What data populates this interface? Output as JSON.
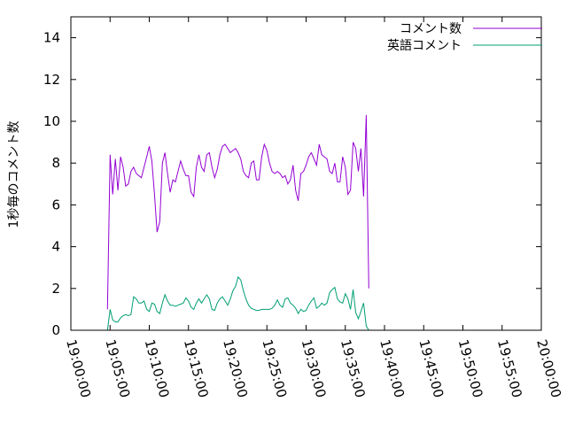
{
  "chart_data": {
    "type": "line",
    "title": "",
    "xlabel": "",
    "ylabel": "1秒毎のコメント数",
    "xlim": [
      "19:00:00",
      "20:00:00"
    ],
    "ylim": [
      0,
      15
    ],
    "grid": false,
    "legend": "top-right",
    "x_ticks": [
      "19:00:00",
      "19:05:00",
      "19:10:00",
      "19:15:00",
      "19:20:00",
      "19:25:00",
      "19:30:00",
      "19:35:00",
      "19:40:00",
      "19:45:00",
      "19:50:00",
      "19:55:00",
      "20:00:00"
    ],
    "y_ticks": [
      "0",
      "2",
      "4",
      "6",
      "8",
      "10",
      "12",
      "14"
    ],
    "series": [
      {
        "name": "コメント数",
        "color": "#9400d3",
        "points": [
          [
            "19:04:40",
            1.0
          ],
          [
            "19:05:00",
            8.4
          ],
          [
            "19:05:20",
            6.5
          ],
          [
            "19:05:40",
            8.2
          ],
          [
            "19:06:00",
            6.7
          ],
          [
            "19:06:20",
            8.3
          ],
          [
            "19:06:40",
            7.8
          ],
          [
            "19:07:00",
            6.9
          ],
          [
            "19:07:20",
            7.0
          ],
          [
            "19:07:40",
            7.6
          ],
          [
            "19:08:00",
            7.8
          ],
          [
            "19:08:20",
            7.5
          ],
          [
            "19:08:40",
            7.4
          ],
          [
            "19:09:00",
            7.3
          ],
          [
            "19:09:20",
            7.8
          ],
          [
            "19:09:40",
            8.3
          ],
          [
            "19:10:00",
            8.8
          ],
          [
            "19:10:20",
            8.1
          ],
          [
            "19:10:40",
            6.5
          ],
          [
            "19:11:00",
            4.7
          ],
          [
            "19:11:20",
            5.2
          ],
          [
            "19:11:40",
            8.0
          ],
          [
            "19:12:00",
            8.5
          ],
          [
            "19:12:20",
            7.5
          ],
          [
            "19:12:40",
            6.6
          ],
          [
            "19:13:00",
            7.2
          ],
          [
            "19:13:20",
            7.1
          ],
          [
            "19:13:40",
            7.6
          ],
          [
            "19:14:00",
            8.1
          ],
          [
            "19:14:20",
            7.7
          ],
          [
            "19:14:40",
            7.4
          ],
          [
            "19:15:00",
            7.4
          ],
          [
            "19:15:20",
            6.6
          ],
          [
            "19:15:40",
            6.4
          ],
          [
            "19:16:00",
            7.8
          ],
          [
            "19:16:20",
            8.4
          ],
          [
            "19:16:40",
            7.8
          ],
          [
            "19:17:00",
            7.6
          ],
          [
            "19:17:20",
            8.4
          ],
          [
            "19:17:40",
            8.5
          ],
          [
            "19:18:00",
            7.8
          ],
          [
            "19:18:20",
            7.3
          ],
          [
            "19:18:40",
            7.7
          ],
          [
            "19:19:00",
            8.4
          ],
          [
            "19:19:20",
            8.8
          ],
          [
            "19:19:40",
            8.9
          ],
          [
            "19:20:00",
            8.7
          ],
          [
            "19:20:20",
            8.5
          ],
          [
            "19:20:40",
            8.6
          ],
          [
            "19:21:00",
            8.7
          ],
          [
            "19:21:20",
            8.5
          ],
          [
            "19:21:40",
            8.2
          ],
          [
            "19:22:00",
            7.6
          ],
          [
            "19:22:20",
            7.4
          ],
          [
            "19:22:40",
            7.3
          ],
          [
            "19:23:00",
            8.0
          ],
          [
            "19:23:20",
            8.1
          ],
          [
            "19:23:40",
            7.2
          ],
          [
            "19:24:00",
            7.2
          ],
          [
            "19:24:20",
            8.3
          ],
          [
            "19:24:40",
            8.9
          ],
          [
            "19:25:00",
            8.6
          ],
          [
            "19:25:20",
            8.0
          ],
          [
            "19:25:40",
            7.6
          ],
          [
            "19:26:00",
            7.5
          ],
          [
            "19:26:20",
            7.6
          ],
          [
            "19:26:40",
            7.5
          ],
          [
            "19:27:00",
            7.3
          ],
          [
            "19:27:20",
            7.4
          ],
          [
            "19:27:40",
            7.0
          ],
          [
            "19:28:00",
            7.2
          ],
          [
            "19:28:20",
            7.9
          ],
          [
            "19:28:40",
            6.7
          ],
          [
            "19:29:00",
            6.2
          ],
          [
            "19:29:20",
            7.5
          ],
          [
            "19:29:40",
            7.6
          ],
          [
            "19:30:00",
            7.9
          ],
          [
            "19:30:20",
            8.3
          ],
          [
            "19:30:40",
            8.5
          ],
          [
            "19:31:00",
            8.2
          ],
          [
            "19:31:20",
            7.9
          ],
          [
            "19:31:40",
            8.9
          ],
          [
            "19:32:00",
            8.4
          ],
          [
            "19:32:20",
            8.3
          ],
          [
            "19:32:40",
            8.2
          ],
          [
            "19:33:00",
            7.6
          ],
          [
            "19:33:20",
            7.5
          ],
          [
            "19:33:40",
            8.0
          ],
          [
            "19:34:00",
            7.1
          ],
          [
            "19:34:20",
            7.1
          ],
          [
            "19:34:40",
            8.3
          ],
          [
            "19:35:00",
            7.8
          ],
          [
            "19:35:20",
            6.5
          ],
          [
            "19:35:40",
            6.7
          ],
          [
            "19:36:00",
            9.0
          ],
          [
            "19:36:20",
            8.7
          ],
          [
            "19:36:40",
            7.6
          ],
          [
            "19:37:00",
            8.7
          ],
          [
            "19:37:20",
            6.4
          ],
          [
            "19:37:40",
            10.3
          ],
          [
            "19:38:00",
            2.0
          ]
        ]
      },
      {
        "name": "英語コメント",
        "color": "#009e73",
        "points": [
          [
            "19:04:40",
            0.0
          ],
          [
            "19:05:00",
            1.0
          ],
          [
            "19:05:20",
            0.5
          ],
          [
            "19:05:40",
            0.4
          ],
          [
            "19:06:00",
            0.4
          ],
          [
            "19:06:20",
            0.6
          ],
          [
            "19:06:40",
            0.7
          ],
          [
            "19:07:00",
            0.75
          ],
          [
            "19:07:20",
            0.7
          ],
          [
            "19:07:40",
            0.75
          ],
          [
            "19:08:00",
            1.6
          ],
          [
            "19:08:20",
            1.5
          ],
          [
            "19:08:40",
            1.3
          ],
          [
            "19:09:00",
            1.3
          ],
          [
            "19:09:20",
            1.4
          ],
          [
            "19:09:40",
            1.0
          ],
          [
            "19:10:00",
            0.9
          ],
          [
            "19:10:20",
            1.3
          ],
          [
            "19:10:40",
            1.25
          ],
          [
            "19:11:00",
            0.9
          ],
          [
            "19:11:20",
            0.8
          ],
          [
            "19:11:40",
            1.3
          ],
          [
            "19:12:00",
            1.7
          ],
          [
            "19:12:20",
            1.4
          ],
          [
            "19:12:40",
            1.2
          ],
          [
            "19:13:00",
            1.2
          ],
          [
            "19:13:20",
            1.15
          ],
          [
            "19:13:40",
            1.2
          ],
          [
            "19:14:00",
            1.25
          ],
          [
            "19:14:20",
            1.3
          ],
          [
            "19:14:40",
            1.55
          ],
          [
            "19:15:00",
            1.4
          ],
          [
            "19:15:20",
            1.1
          ],
          [
            "19:15:40",
            1.0
          ],
          [
            "19:16:00",
            1.3
          ],
          [
            "19:16:20",
            1.5
          ],
          [
            "19:16:40",
            1.3
          ],
          [
            "19:17:00",
            1.5
          ],
          [
            "19:17:20",
            1.7
          ],
          [
            "19:17:40",
            1.5
          ],
          [
            "19:18:00",
            1.0
          ],
          [
            "19:18:20",
            0.95
          ],
          [
            "19:18:40",
            1.3
          ],
          [
            "19:19:00",
            1.5
          ],
          [
            "19:19:20",
            1.6
          ],
          [
            "19:19:40",
            1.4
          ],
          [
            "19:20:00",
            1.2
          ],
          [
            "19:20:20",
            1.5
          ],
          [
            "19:20:40",
            1.9
          ],
          [
            "19:21:00",
            2.1
          ],
          [
            "19:21:20",
            2.55
          ],
          [
            "19:21:40",
            2.4
          ],
          [
            "19:22:00",
            1.9
          ],
          [
            "19:22:20",
            1.5
          ],
          [
            "19:22:40",
            1.2
          ],
          [
            "19:23:00",
            1.05
          ],
          [
            "19:23:20",
            1.0
          ],
          [
            "19:23:40",
            0.95
          ],
          [
            "19:24:00",
            0.95
          ],
          [
            "19:24:20",
            1.0
          ],
          [
            "19:24:40",
            1.0
          ],
          [
            "19:25:00",
            1.0
          ],
          [
            "19:25:20",
            1.0
          ],
          [
            "19:25:40",
            1.05
          ],
          [
            "19:26:00",
            1.2
          ],
          [
            "19:26:20",
            1.45
          ],
          [
            "19:26:40",
            1.2
          ],
          [
            "19:27:00",
            1.1
          ],
          [
            "19:27:20",
            1.5
          ],
          [
            "19:27:40",
            1.55
          ],
          [
            "19:28:00",
            1.3
          ],
          [
            "19:28:20",
            1.2
          ],
          [
            "19:28:40",
            1.05
          ],
          [
            "19:29:00",
            0.8
          ],
          [
            "19:29:20",
            1.0
          ],
          [
            "19:29:40",
            0.9
          ],
          [
            "19:30:00",
            0.95
          ],
          [
            "19:30:20",
            1.2
          ],
          [
            "19:30:40",
            1.4
          ],
          [
            "19:31:00",
            1.55
          ],
          [
            "19:31:20",
            1.05
          ],
          [
            "19:31:40",
            1.15
          ],
          [
            "19:32:00",
            1.3
          ],
          [
            "19:32:20",
            1.2
          ],
          [
            "19:32:40",
            1.3
          ],
          [
            "19:33:00",
            1.8
          ],
          [
            "19:33:20",
            1.95
          ],
          [
            "19:33:40",
            2.05
          ],
          [
            "19:34:00",
            1.5
          ],
          [
            "19:34:20",
            1.35
          ],
          [
            "19:34:40",
            1.3
          ],
          [
            "19:35:00",
            1.75
          ],
          [
            "19:35:20",
            1.5
          ],
          [
            "19:35:40",
            1.0
          ],
          [
            "19:36:00",
            1.95
          ],
          [
            "19:36:20",
            0.85
          ],
          [
            "19:36:40",
            0.55
          ],
          [
            "19:37:00",
            0.9
          ],
          [
            "19:37:20",
            1.3
          ],
          [
            "19:37:40",
            0.2
          ],
          [
            "19:38:00",
            0.0
          ]
        ]
      }
    ]
  }
}
